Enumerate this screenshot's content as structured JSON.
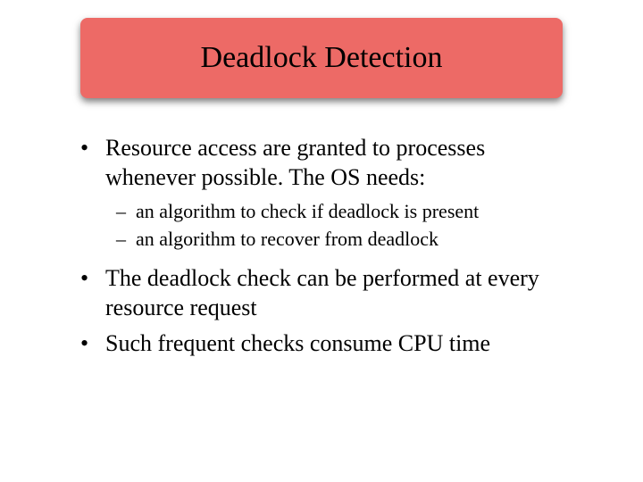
{
  "slide": {
    "title": "Deadlock Detection",
    "title_box_color": "#ed6a66",
    "title_text_color": "#000000",
    "title_fontsize": 34,
    "body_text_color": "#000000",
    "body_fontsize": 26,
    "sub_fontsize": 22,
    "background_color": "#ffffff",
    "bullets": [
      {
        "text": "Resource access are granted to processes whenever possible. The OS needs:",
        "subitems": [
          "an algorithm to check if deadlock is present",
          "an algorithm to recover from deadlock"
        ]
      },
      {
        "text": "The deadlock check can be performed at every resource request",
        "subitems": []
      },
      {
        "text": "Such frequent checks consume CPU time",
        "subitems": []
      }
    ]
  }
}
